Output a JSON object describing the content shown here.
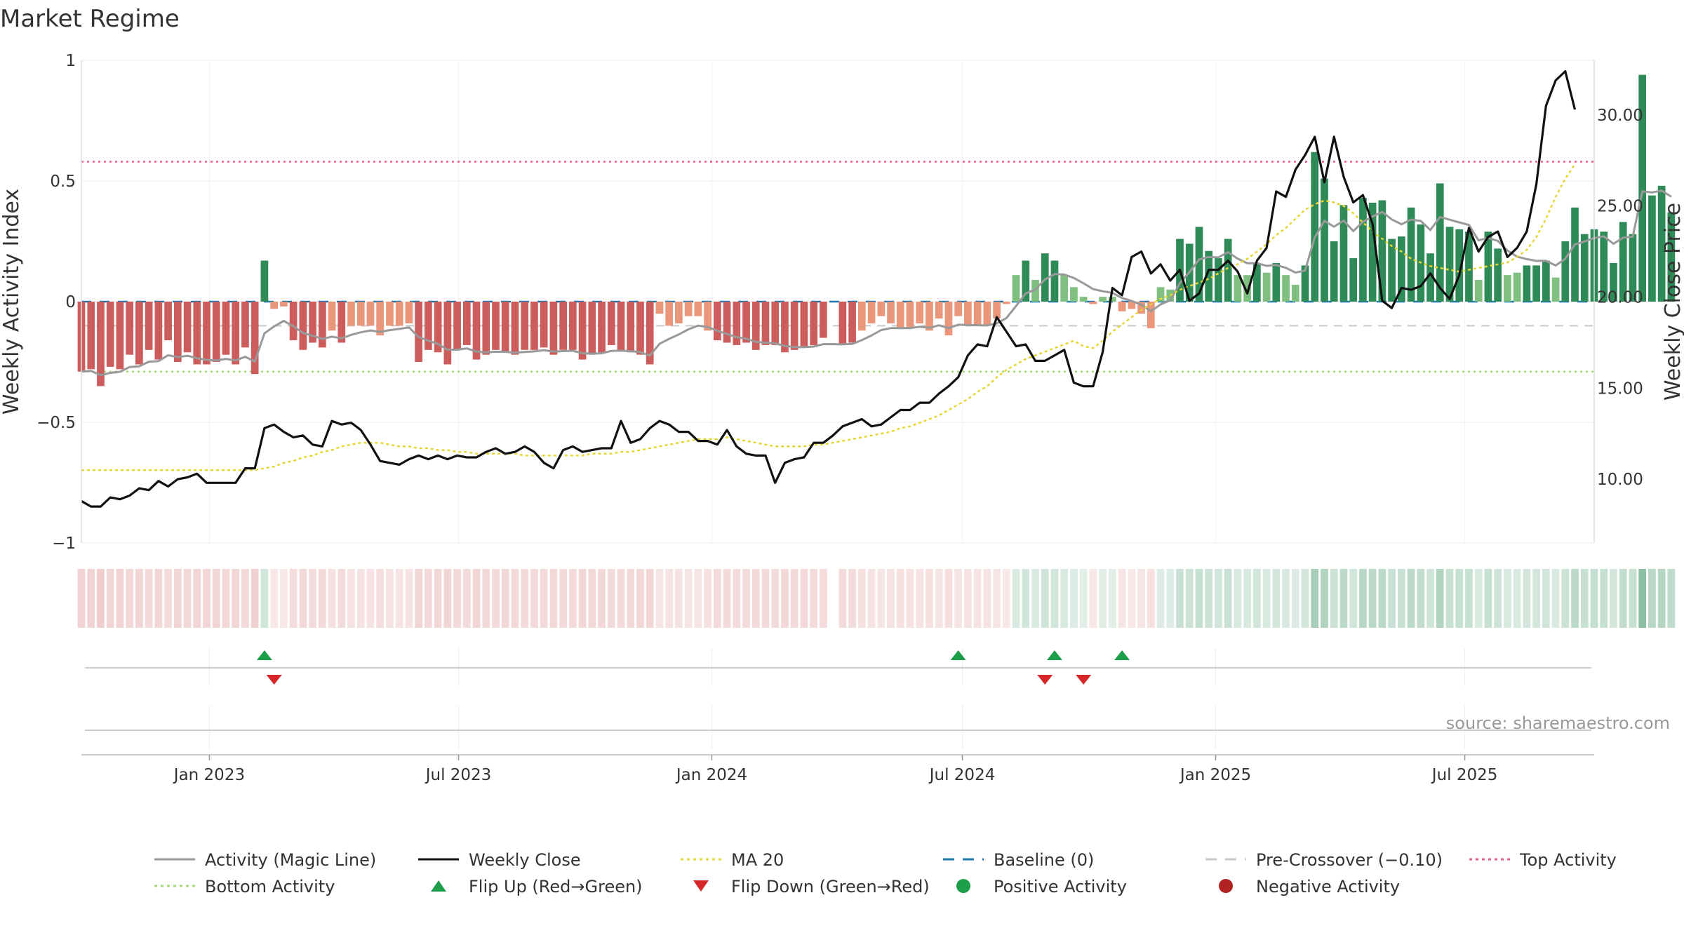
{
  "chart_data": {
    "type": "bar",
    "title": "Market Regime",
    "ylabel_left": "Weekly Activity Index",
    "ylabel_right": "Weekly Close Price",
    "ylim_left": [
      -1,
      1
    ],
    "ylim_right": [
      6.5,
      33
    ],
    "left_ticks": [
      {
        "v": 1,
        "t": "1"
      },
      {
        "v": 0.5,
        "t": "0.5"
      },
      {
        "v": 0,
        "t": "0"
      },
      {
        "v": -0.5,
        "t": "−0.5"
      },
      {
        "v": -1,
        "t": "−1"
      }
    ],
    "right_ticks": [
      {
        "v": 10,
        "t": "10.00"
      },
      {
        "v": 15,
        "t": "15.00"
      },
      {
        "v": 20,
        "t": "20.00"
      },
      {
        "v": 25,
        "t": "25.00"
      },
      {
        "v": 30,
        "t": "30.00"
      }
    ],
    "x_start": "2022-09-30",
    "x_end": "2025-10-03",
    "x_ticks": [
      {
        "date": "2023-01-01",
        "label": "Jan 2023"
      },
      {
        "date": "2023-07-01",
        "label": "Jul 2023"
      },
      {
        "date": "2024-01-01",
        "label": "Jan 2024"
      },
      {
        "date": "2024-07-01",
        "label": "Jul 2024"
      },
      {
        "date": "2025-01-01",
        "label": "Jan 2025"
      },
      {
        "date": "2025-07-01",
        "label": "Jul 2025"
      }
    ],
    "reference_lines": {
      "top_activity": 0.58,
      "bottom_activity": -0.29,
      "baseline": 0,
      "pre_crossover": -0.1
    },
    "colors": {
      "pos_strong": "#2e8b57",
      "pos_weak": "#7fbf7f",
      "neg_strong": "#cd5c5c",
      "neg_weak": "#e9967a",
      "magic_line": "#999999",
      "close": "#111111",
      "ma20": "#e8d630",
      "baseline": "#1f77b4",
      "pre_crossover": "#c8c8c8",
      "top": "#e0607e",
      "bottom": "#a8d878",
      "flip_up": "#1e9e4a",
      "flip_down": "#d62728",
      "positive": "#1e9e4a",
      "negative": "#b22222"
    },
    "weeks": {
      "start": "2022-09-30",
      "activity": [
        -0.29,
        -0.28,
        -0.35,
        -0.27,
        -0.28,
        -0.22,
        -0.26,
        -0.2,
        -0.24,
        -0.16,
        -0.25,
        -0.21,
        -0.26,
        -0.26,
        -0.25,
        -0.22,
        -0.26,
        -0.19,
        -0.3,
        0.17,
        -0.03,
        -0.02,
        -0.16,
        -0.2,
        -0.17,
        -0.19,
        -0.12,
        -0.17,
        -0.1,
        -0.1,
        -0.1,
        -0.14,
        -0.1,
        -0.1,
        -0.09,
        -0.25,
        -0.2,
        -0.21,
        -0.26,
        -0.2,
        -0.18,
        -0.24,
        -0.22,
        -0.2,
        -0.21,
        -0.22,
        -0.2,
        -0.2,
        -0.19,
        -0.22,
        -0.2,
        -0.2,
        -0.24,
        -0.22,
        -0.21,
        -0.18,
        -0.2,
        -0.21,
        -0.22,
        -0.26,
        -0.05,
        -0.1,
        -0.09,
        -0.06,
        -0.06,
        -0.12,
        -0.16,
        -0.17,
        -0.18,
        -0.17,
        -0.2,
        -0.18,
        -0.18,
        -0.21,
        -0.2,
        -0.19,
        -0.18,
        -0.15,
        null,
        -0.18,
        -0.17,
        -0.12,
        -0.09,
        -0.06,
        -0.09,
        -0.11,
        -0.11,
        -0.09,
        -0.12,
        -0.07,
        -0.14,
        -0.06,
        -0.1,
        -0.1,
        -0.1,
        -0.07,
        -0.01,
        0.11,
        0.17,
        0.09,
        0.2,
        0.17,
        0.11,
        0.06,
        0.02,
        -0.01,
        0.02,
        0.02,
        -0.04,
        -0.03,
        -0.05,
        -0.11,
        0.06,
        0.05,
        0.26,
        0.24,
        0.31,
        0.21,
        0.18,
        0.26,
        0.11,
        0.11,
        0.16,
        0.12,
        0.16,
        0.11,
        0.07,
        0.15,
        0.62,
        0.51,
        0.25,
        0.4,
        0.18,
        0.43,
        0.41,
        0.42,
        0.26,
        0.27,
        0.39,
        0.32,
        0.2,
        0.49,
        0.31,
        0.3,
        0.29,
        0.09,
        0.29,
        0.22,
        0.11,
        0.12,
        0.15,
        0.15,
        0.17,
        0.1,
        0.25,
        0.39,
        0.28,
        0.3,
        0.29,
        0.16,
        0.33,
        0.28,
        0.94,
        0.44,
        0.48,
        0.37
      ],
      "close": [
        8.8,
        8.5,
        8.5,
        9.0,
        8.9,
        9.1,
        9.5,
        9.4,
        9.9,
        9.6,
        10.0,
        10.1,
        10.3,
        9.8,
        9.8,
        9.8,
        9.8,
        10.6,
        10.6,
        12.8,
        13.0,
        12.6,
        12.3,
        12.4,
        11.9,
        11.8,
        13.2,
        13.0,
        13.1,
        12.7,
        11.9,
        11.0,
        10.9,
        10.8,
        11.1,
        11.3,
        11.1,
        11.3,
        11.1,
        11.3,
        11.2,
        11.2,
        11.5,
        11.7,
        11.4,
        11.5,
        11.8,
        11.5,
        10.9,
        10.6,
        11.6,
        11.8,
        11.5,
        11.6,
        11.7,
        11.7,
        13.2,
        12.0,
        12.2,
        12.8,
        13.2,
        13.0,
        12.6,
        12.6,
        12.1,
        12.1,
        11.9,
        12.7,
        11.8,
        11.4,
        11.3,
        11.3,
        9.8,
        10.9,
        11.1,
        11.2,
        12.0,
        12.0,
        12.4,
        12.9,
        13.1,
        13.3,
        12.9,
        13.0,
        13.4,
        13.8,
        13.8,
        14.2,
        14.2,
        14.7,
        15.1,
        15.6,
        16.8,
        17.4,
        17.3,
        18.9,
        18.1,
        17.3,
        17.4,
        16.5,
        16.5,
        16.8,
        17.1,
        15.3,
        15.1,
        15.1,
        17.0,
        20.5,
        20.1,
        22.2,
        22.5,
        21.3,
        21.8,
        20.9,
        21.5,
        19.8,
        20.2,
        21.5,
        21.5,
        22.0,
        21.4,
        20.2,
        22.0,
        22.7,
        25.8,
        25.5,
        27.0,
        27.8,
        28.8,
        26.3,
        28.8,
        26.6,
        25.2,
        25.6,
        24.0,
        19.8,
        19.4,
        20.5,
        20.4,
        20.6,
        21.3,
        20.5,
        19.9,
        21.2,
        23.8,
        22.5,
        23.3,
        23.6,
        22.2,
        22.7,
        23.6,
        26.2,
        30.5,
        31.9,
        32.4,
        30.3
      ],
      "ma20": [
        10.5,
        10.5,
        10.5,
        10.5,
        10.5,
        10.5,
        10.5,
        10.5,
        10.5,
        10.5,
        10.5,
        10.5,
        10.5,
        10.5,
        10.5,
        10.5,
        10.5,
        10.5,
        10.5,
        10.6,
        10.7,
        10.9,
        11.0,
        11.2,
        11.3,
        11.5,
        11.6,
        11.8,
        11.9,
        12.0,
        12.0,
        12.0,
        11.9,
        11.8,
        11.8,
        11.7,
        11.7,
        11.6,
        11.6,
        11.5,
        11.5,
        11.4,
        11.4,
        11.4,
        11.4,
        11.4,
        11.3,
        11.3,
        11.3,
        11.3,
        11.3,
        11.3,
        11.3,
        11.4,
        11.4,
        11.4,
        11.5,
        11.5,
        11.6,
        11.7,
        11.8,
        11.9,
        12.0,
        12.1,
        12.2,
        12.2,
        12.2,
        12.3,
        12.2,
        12.1,
        12.0,
        11.9,
        11.8,
        11.8,
        11.8,
        11.8,
        11.9,
        11.9,
        12.0,
        12.1,
        12.2,
        12.3,
        12.4,
        12.5,
        12.6,
        12.8,
        12.9,
        13.1,
        13.3,
        13.5,
        13.8,
        14.1,
        14.4,
        14.8,
        15.1,
        15.6,
        16.0,
        16.3,
        16.6,
        16.8,
        17.0,
        17.2,
        17.4,
        17.6,
        17.3,
        17.2,
        17.6,
        18.1,
        18.5,
        18.9,
        19.3,
        19.6,
        19.9,
        20.1,
        20.4,
        20.6,
        20.8,
        21.0,
        21.3,
        21.6,
        21.8,
        22.1,
        22.5,
        22.9,
        23.4,
        23.8,
        24.3,
        24.8,
        25.1,
        25.3,
        25.2,
        25.0,
        24.6,
        24.1,
        23.6,
        23.2,
        22.8,
        22.5,
        22.1,
        21.9,
        21.7,
        21.6,
        21.5,
        21.4,
        21.5,
        21.6,
        21.7,
        21.8,
        21.9,
        22.2,
        22.6,
        23.3,
        24.3,
        25.5,
        26.5,
        27.3
      ]
    },
    "flips": {
      "up": [
        "2023-02-10",
        "2024-06-28",
        "2024-09-06",
        "2024-10-25"
      ],
      "down": [
        "2023-02-17",
        "2024-08-30",
        "2024-09-27"
      ]
    },
    "legend": [
      {
        "label": "Activity (Magic Line)",
        "kind": "line",
        "color": "#999999"
      },
      {
        "label": "Weekly Close",
        "kind": "line",
        "color": "#111111"
      },
      {
        "label": "MA 20",
        "kind": "dotted",
        "color": "#e8d630"
      },
      {
        "label": "Baseline (0)",
        "kind": "dashed",
        "color": "#1f77b4"
      },
      {
        "label": "Pre-Crossover (−0.10)",
        "kind": "dashed",
        "color": "#c8c8c8"
      },
      {
        "label": "Top Activity",
        "kind": "dotted",
        "color": "#e0607e"
      },
      {
        "label": "Bottom Activity",
        "kind": "dotted",
        "color": "#a8d878"
      },
      {
        "label": "Flip Up (Red→Green)",
        "kind": "tri-up",
        "color": "#1e9e4a"
      },
      {
        "label": "Flip Down (Green→Red)",
        "kind": "tri-down",
        "color": "#d62728"
      },
      {
        "label": "Positive Activity",
        "kind": "dot",
        "color": "#1e9e4a"
      },
      {
        "label": "Negative Activity",
        "kind": "dot",
        "color": "#b22222"
      }
    ],
    "source": "source: sharemaestro.com"
  }
}
